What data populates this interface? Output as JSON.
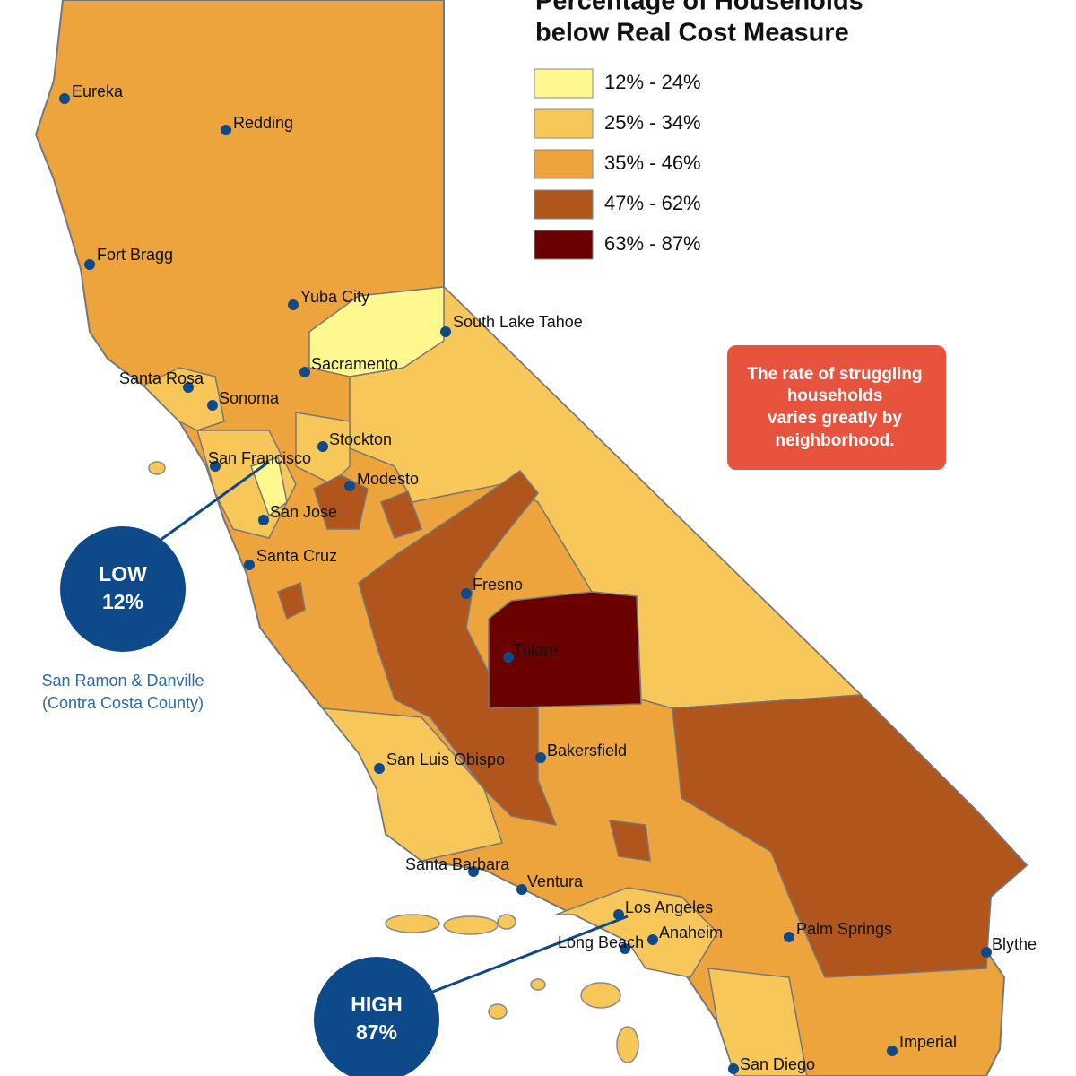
{
  "title": [
    "Percentage of Households",
    "below Real Cost Measure"
  ],
  "legend": [
    {
      "label": "12% - 24%",
      "color": "#fff88e"
    },
    {
      "label": "25% - 34%",
      "color": "#f8c75a"
    },
    {
      "label": "35% - 46%",
      "color": "#eea43c"
    },
    {
      "label": "47% - 62%",
      "color": "#b0561c"
    },
    {
      "label": "63% - 87%",
      "color": "#6a0000"
    }
  ],
  "cities": [
    "Eureka",
    "Redding",
    "Fort Bragg",
    "Yuba City",
    "South Lake Tahoe",
    "Sacramento",
    "Santa Rosa",
    "Sonoma",
    "Stockton",
    "San Francisco",
    "Modesto",
    "San Jose",
    "Santa Cruz",
    "Fresno",
    "Tulare",
    "San Luis Obispo",
    "Bakersfield",
    "Santa Barbara",
    "Ventura",
    "Los Angeles",
    "Anaheim",
    "Long Beach",
    "Palm Springs",
    "Blythe",
    "Imperial",
    "San Diego"
  ],
  "note": [
    "The rate of struggling",
    "households",
    "varies greatly by",
    "neighborhood."
  ],
  "low": {
    "label": "LOW",
    "value": "12%",
    "place": [
      "San Ramon & Danville",
      "(Contra Costa County)"
    ]
  },
  "high": {
    "label": "HIGH",
    "value": "87%"
  }
}
